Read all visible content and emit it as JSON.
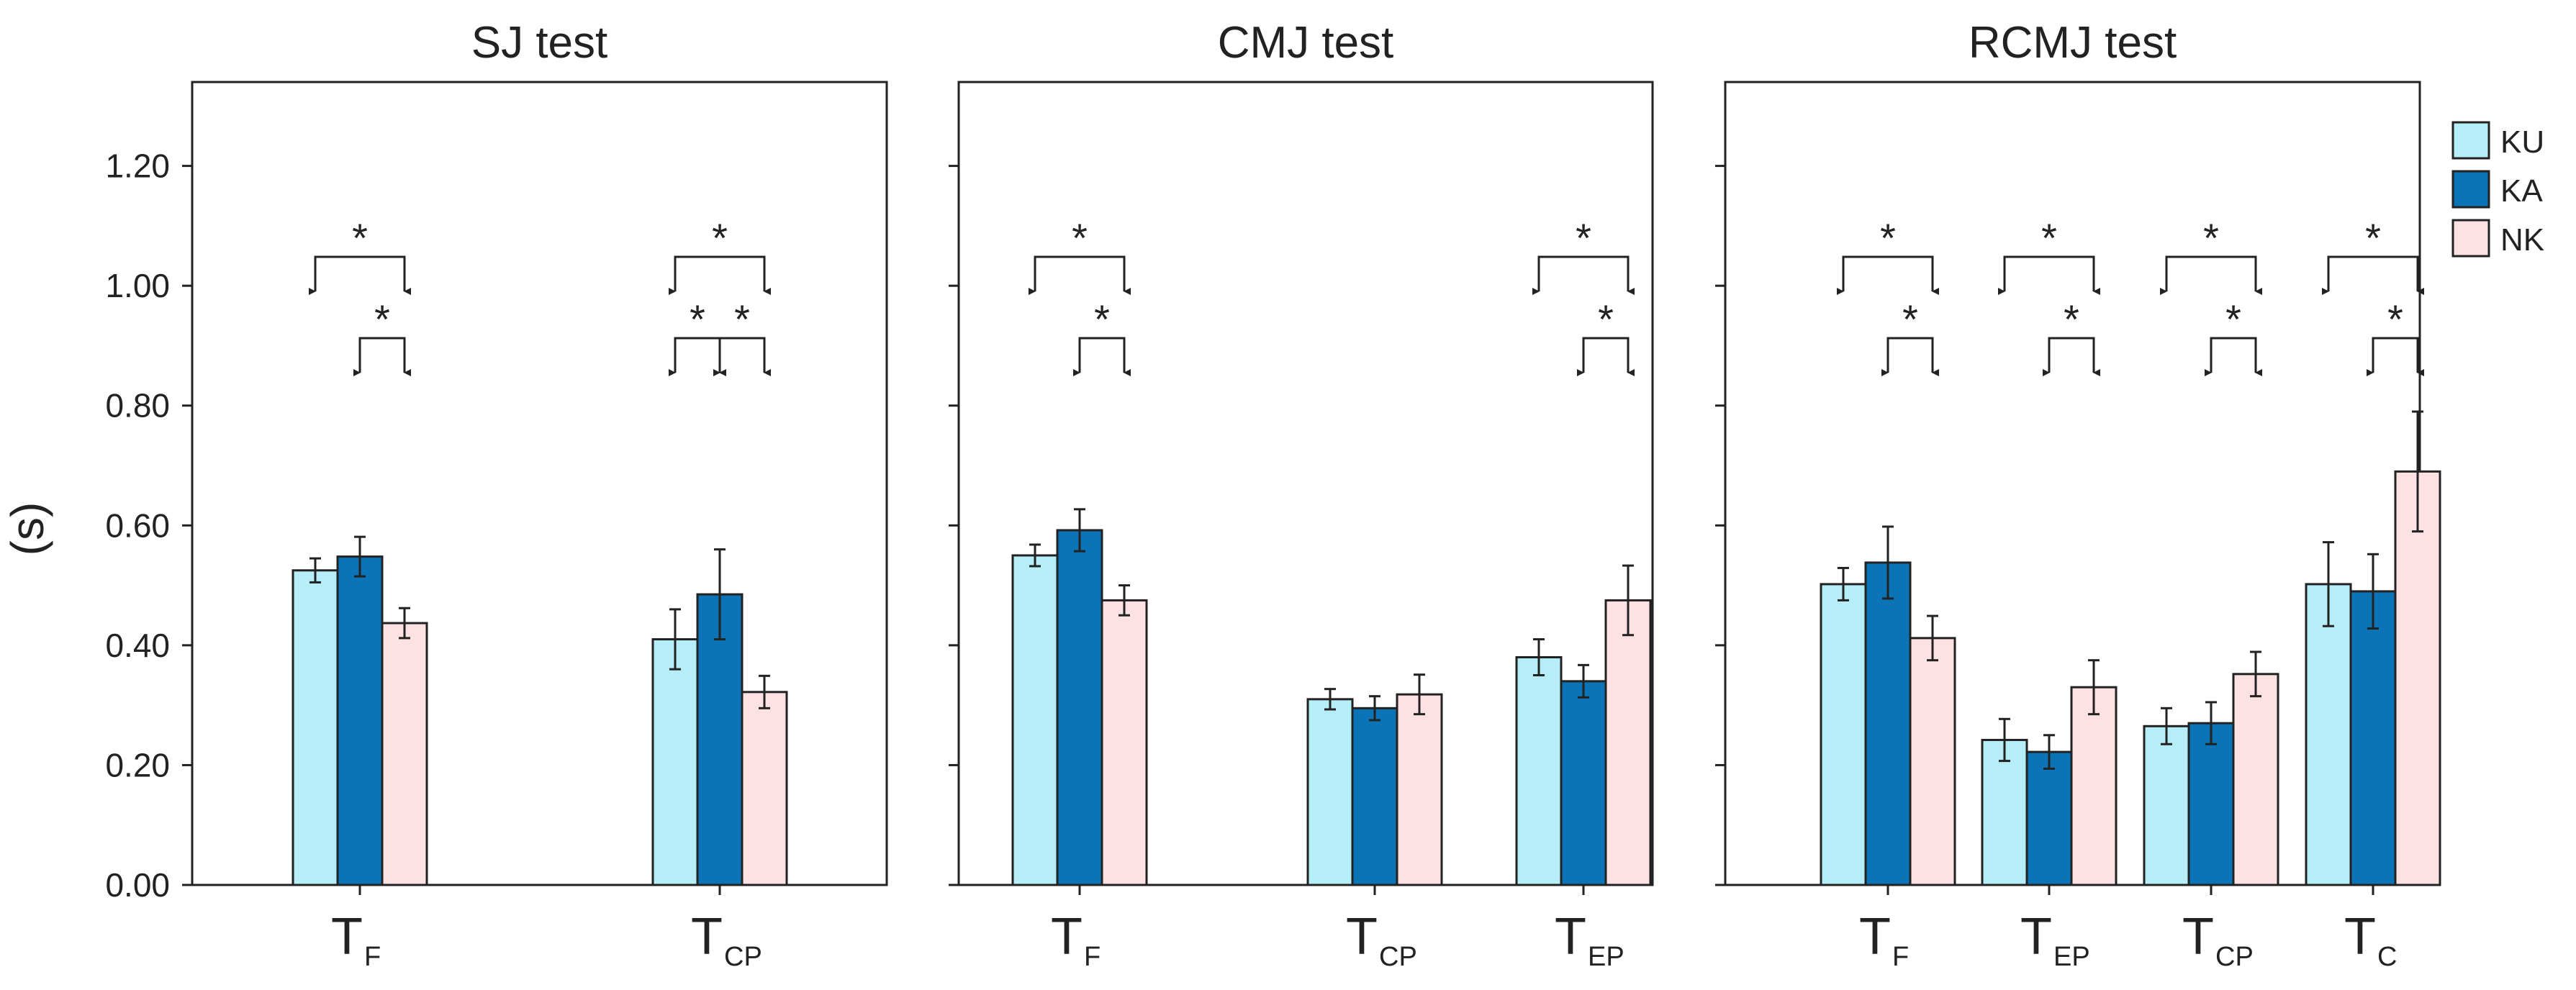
{
  "chart_data": {
    "type": "bar",
    "ylabel": "(s)",
    "ylim": [
      0,
      1.34
    ],
    "yticks": [
      "0.00",
      "0.20",
      "0.40",
      "0.60",
      "0.80",
      "1.00",
      "1.20"
    ],
    "legend": {
      "position": "right",
      "entries": [
        {
          "name": "KU",
          "color": "#b5eef8"
        },
        {
          "name": "KA",
          "color": "#0b74b6"
        },
        {
          "name": "NK",
          "color": "#fde1e3"
        }
      ]
    },
    "panels": [
      {
        "title": "SJ test",
        "categories": [
          {
            "main": "T",
            "sub": "F"
          },
          {
            "main": "T",
            "sub": "CP"
          }
        ],
        "series": [
          {
            "name": "KU",
            "values": [
              0.525,
              0.41
            ],
            "errors": [
              0.02,
              0.05
            ]
          },
          {
            "name": "KA",
            "values": [
              0.548,
              0.485
            ],
            "errors": [
              0.033,
              0.075
            ]
          },
          {
            "name": "NK",
            "values": [
              0.437,
              0.322
            ],
            "errors": [
              0.025,
              0.027
            ]
          }
        ],
        "significance": [
          {
            "category": 0,
            "top": [
              "KU",
              "NK"
            ],
            "bottom": [
              [
                "KA",
                "NK"
              ]
            ],
            "label": "*"
          },
          {
            "category": 1,
            "top": [
              "KU",
              "NK"
            ],
            "bottom": [
              [
                "KU",
                "KA"
              ],
              [
                "KA",
                "NK"
              ]
            ],
            "label": "*"
          }
        ]
      },
      {
        "title": "CMJ test",
        "categories": [
          {
            "main": "T",
            "sub": "F"
          },
          {
            "main": "T",
            "sub": "CP"
          },
          {
            "main": "T",
            "sub": "EP"
          }
        ],
        "series": [
          {
            "name": "KU",
            "values": [
              0.55,
              0.31,
              0.38
            ],
            "errors": [
              0.018,
              0.017,
              0.03
            ]
          },
          {
            "name": "KA",
            "values": [
              0.592,
              0.295,
              0.34
            ],
            "errors": [
              0.035,
              0.02,
              0.027
            ]
          },
          {
            "name": "NK",
            "values": [
              0.475,
              0.318,
              0.475
            ],
            "errors": [
              0.025,
              0.033,
              0.058
            ]
          }
        ],
        "significance": [
          {
            "category": 0,
            "top": [
              "KU",
              "NK"
            ],
            "bottom": [
              [
                "KA",
                "NK"
              ]
            ],
            "label": "*"
          },
          {
            "category": 2,
            "top": [
              "KU",
              "NK"
            ],
            "bottom": [
              [
                "KA",
                "NK"
              ]
            ],
            "label": "*"
          }
        ]
      },
      {
        "title": "RCMJ test",
        "categories": [
          {
            "main": "T",
            "sub": "F"
          },
          {
            "main": "T",
            "sub": "EP"
          },
          {
            "main": "T",
            "sub": "CP"
          },
          {
            "main": "T",
            "sub": "C"
          }
        ],
        "series": [
          {
            "name": "KU",
            "values": [
              0.502,
              0.242,
              0.265,
              0.502
            ],
            "errors": [
              0.027,
              0.035,
              0.03,
              0.07
            ]
          },
          {
            "name": "KA",
            "values": [
              0.538,
              0.222,
              0.27,
              0.49
            ],
            "errors": [
              0.06,
              0.028,
              0.035,
              0.062
            ]
          },
          {
            "name": "NK",
            "values": [
              0.412,
              0.33,
              0.352,
              0.69
            ],
            "errors": [
              0.037,
              0.045,
              0.037,
              0.1
            ]
          }
        ],
        "significance": [
          {
            "category": 0,
            "top": [
              "KU",
              "NK"
            ],
            "bottom": [
              [
                "KA",
                "NK"
              ]
            ],
            "label": "*"
          },
          {
            "category": 1,
            "top": [
              "KU",
              "NK"
            ],
            "bottom": [
              [
                "KA",
                "NK"
              ]
            ],
            "label": "*"
          },
          {
            "category": 2,
            "top": [
              "KU",
              "NK"
            ],
            "bottom": [
              [
                "KA",
                "NK"
              ]
            ],
            "label": "*"
          },
          {
            "category": 3,
            "top": [
              "KU",
              "NK"
            ],
            "bottom": [
              [
                "KA",
                "NK"
              ]
            ],
            "label": "*"
          }
        ]
      }
    ]
  }
}
